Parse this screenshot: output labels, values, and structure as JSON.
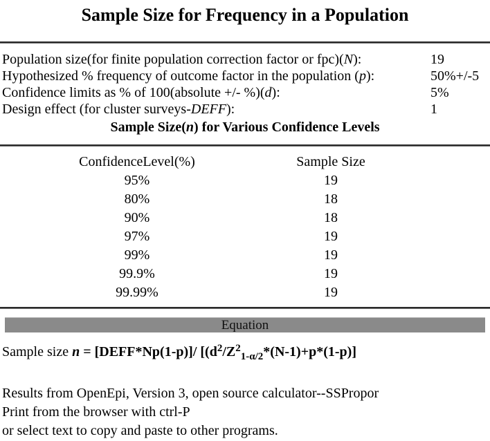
{
  "title": "Sample Size for Frequency in a Population",
  "parameters": [
    {
      "label_prefix": "Population size(for finite population correction factor or fpc)(",
      "label_italic": "N",
      "label_suffix": "):",
      "value": "19"
    },
    {
      "label_prefix": "Hypothesized % frequency of outcome factor in the population (",
      "label_italic": "p",
      "label_suffix": "):",
      "value": "50%+/-5"
    },
    {
      "label_prefix": "Confidence limits as % of 100(absolute +/- %)(",
      "label_italic": "d",
      "label_suffix": "):",
      "value": "5%"
    },
    {
      "label_prefix": "Design effect (for cluster surveys-",
      "label_italic": "DEFF",
      "label_suffix": "):",
      "value": "1"
    }
  ],
  "results_heading": {
    "prefix": "Sample Size(",
    "italic": "n",
    "suffix": ") for Various Confidence Levels"
  },
  "results_table": {
    "headers": [
      "ConfidenceLevel(%)",
      "Sample Size"
    ],
    "rows": [
      [
        "95%",
        "19"
      ],
      [
        "80%",
        "18"
      ],
      [
        "90%",
        "18"
      ],
      [
        "97%",
        "19"
      ],
      [
        "99%",
        "19"
      ],
      [
        "99.9%",
        "19"
      ],
      [
        "99.99%",
        "19"
      ]
    ]
  },
  "equation": {
    "header": "Equation",
    "prefix": "Sample size ",
    "n_symbol": "n",
    "part1": " = [DEFF*Np(1-p)]/ [(d",
    "sup1": "2",
    "part2": "/Z",
    "sup2": "2",
    "sub1": "1-α/2",
    "part3": "*(N-1)+p*(1-p)]"
  },
  "footer": {
    "line1": "Results from OpenEpi, Version 3, open source calculator--SSPropor",
    "line2": "Print from the browser with ctrl-P",
    "line3": "or select text to copy and paste to other programs."
  },
  "colors": {
    "equation_bar_bg": "#8a8a8a",
    "text": "#000000",
    "background": "#ffffff"
  }
}
